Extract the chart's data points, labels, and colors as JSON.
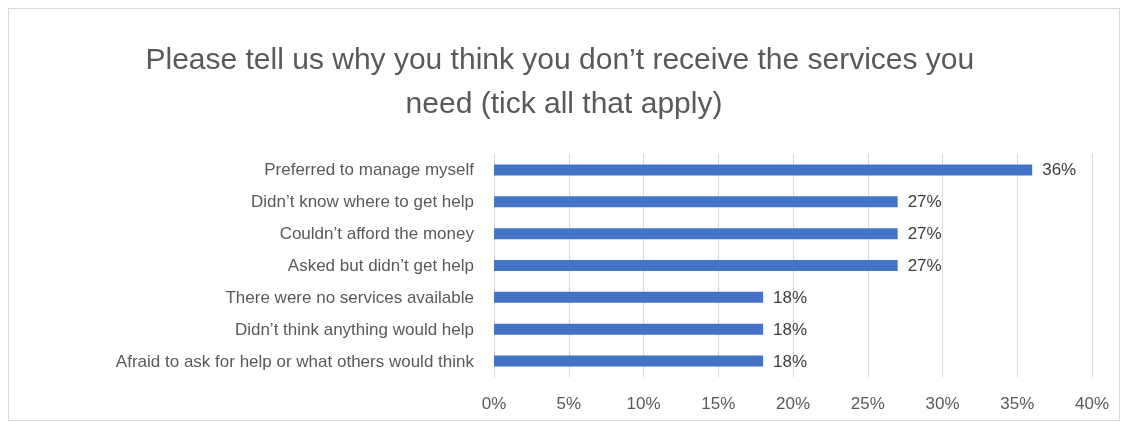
{
  "chart_data": {
    "type": "bar",
    "orientation": "horizontal",
    "title": "Please tell us why you think you don’t receive the services you need (tick all that apply)",
    "categories": [
      "Preferred to manage myself",
      "Didn’t know where to get help",
      "Couldn’t afford the money",
      "Asked but didn’t get help",
      "There were no services available",
      "Didn’t think anything would help",
      "Afraid to ask for help or what others would think"
    ],
    "values": [
      36,
      27,
      27,
      27,
      18,
      18,
      18
    ],
    "value_labels": [
      "36%",
      "27%",
      "27%",
      "27%",
      "18%",
      "18%",
      "18%"
    ],
    "color": "#4472c4",
    "xlim": [
      0,
      40
    ],
    "xticks": [
      {
        "value": 0,
        "label": "0%"
      },
      {
        "value": 5,
        "label": "5%"
      },
      {
        "value": 10,
        "label": "10%"
      },
      {
        "value": 15,
        "label": "15%"
      },
      {
        "value": 20,
        "label": "20%"
      },
      {
        "value": 25,
        "label": "25%"
      },
      {
        "value": 30,
        "label": "30%"
      },
      {
        "value": 35,
        "label": "35%"
      },
      {
        "value": 40,
        "label": "40%"
      }
    ],
    "grid": "x"
  }
}
